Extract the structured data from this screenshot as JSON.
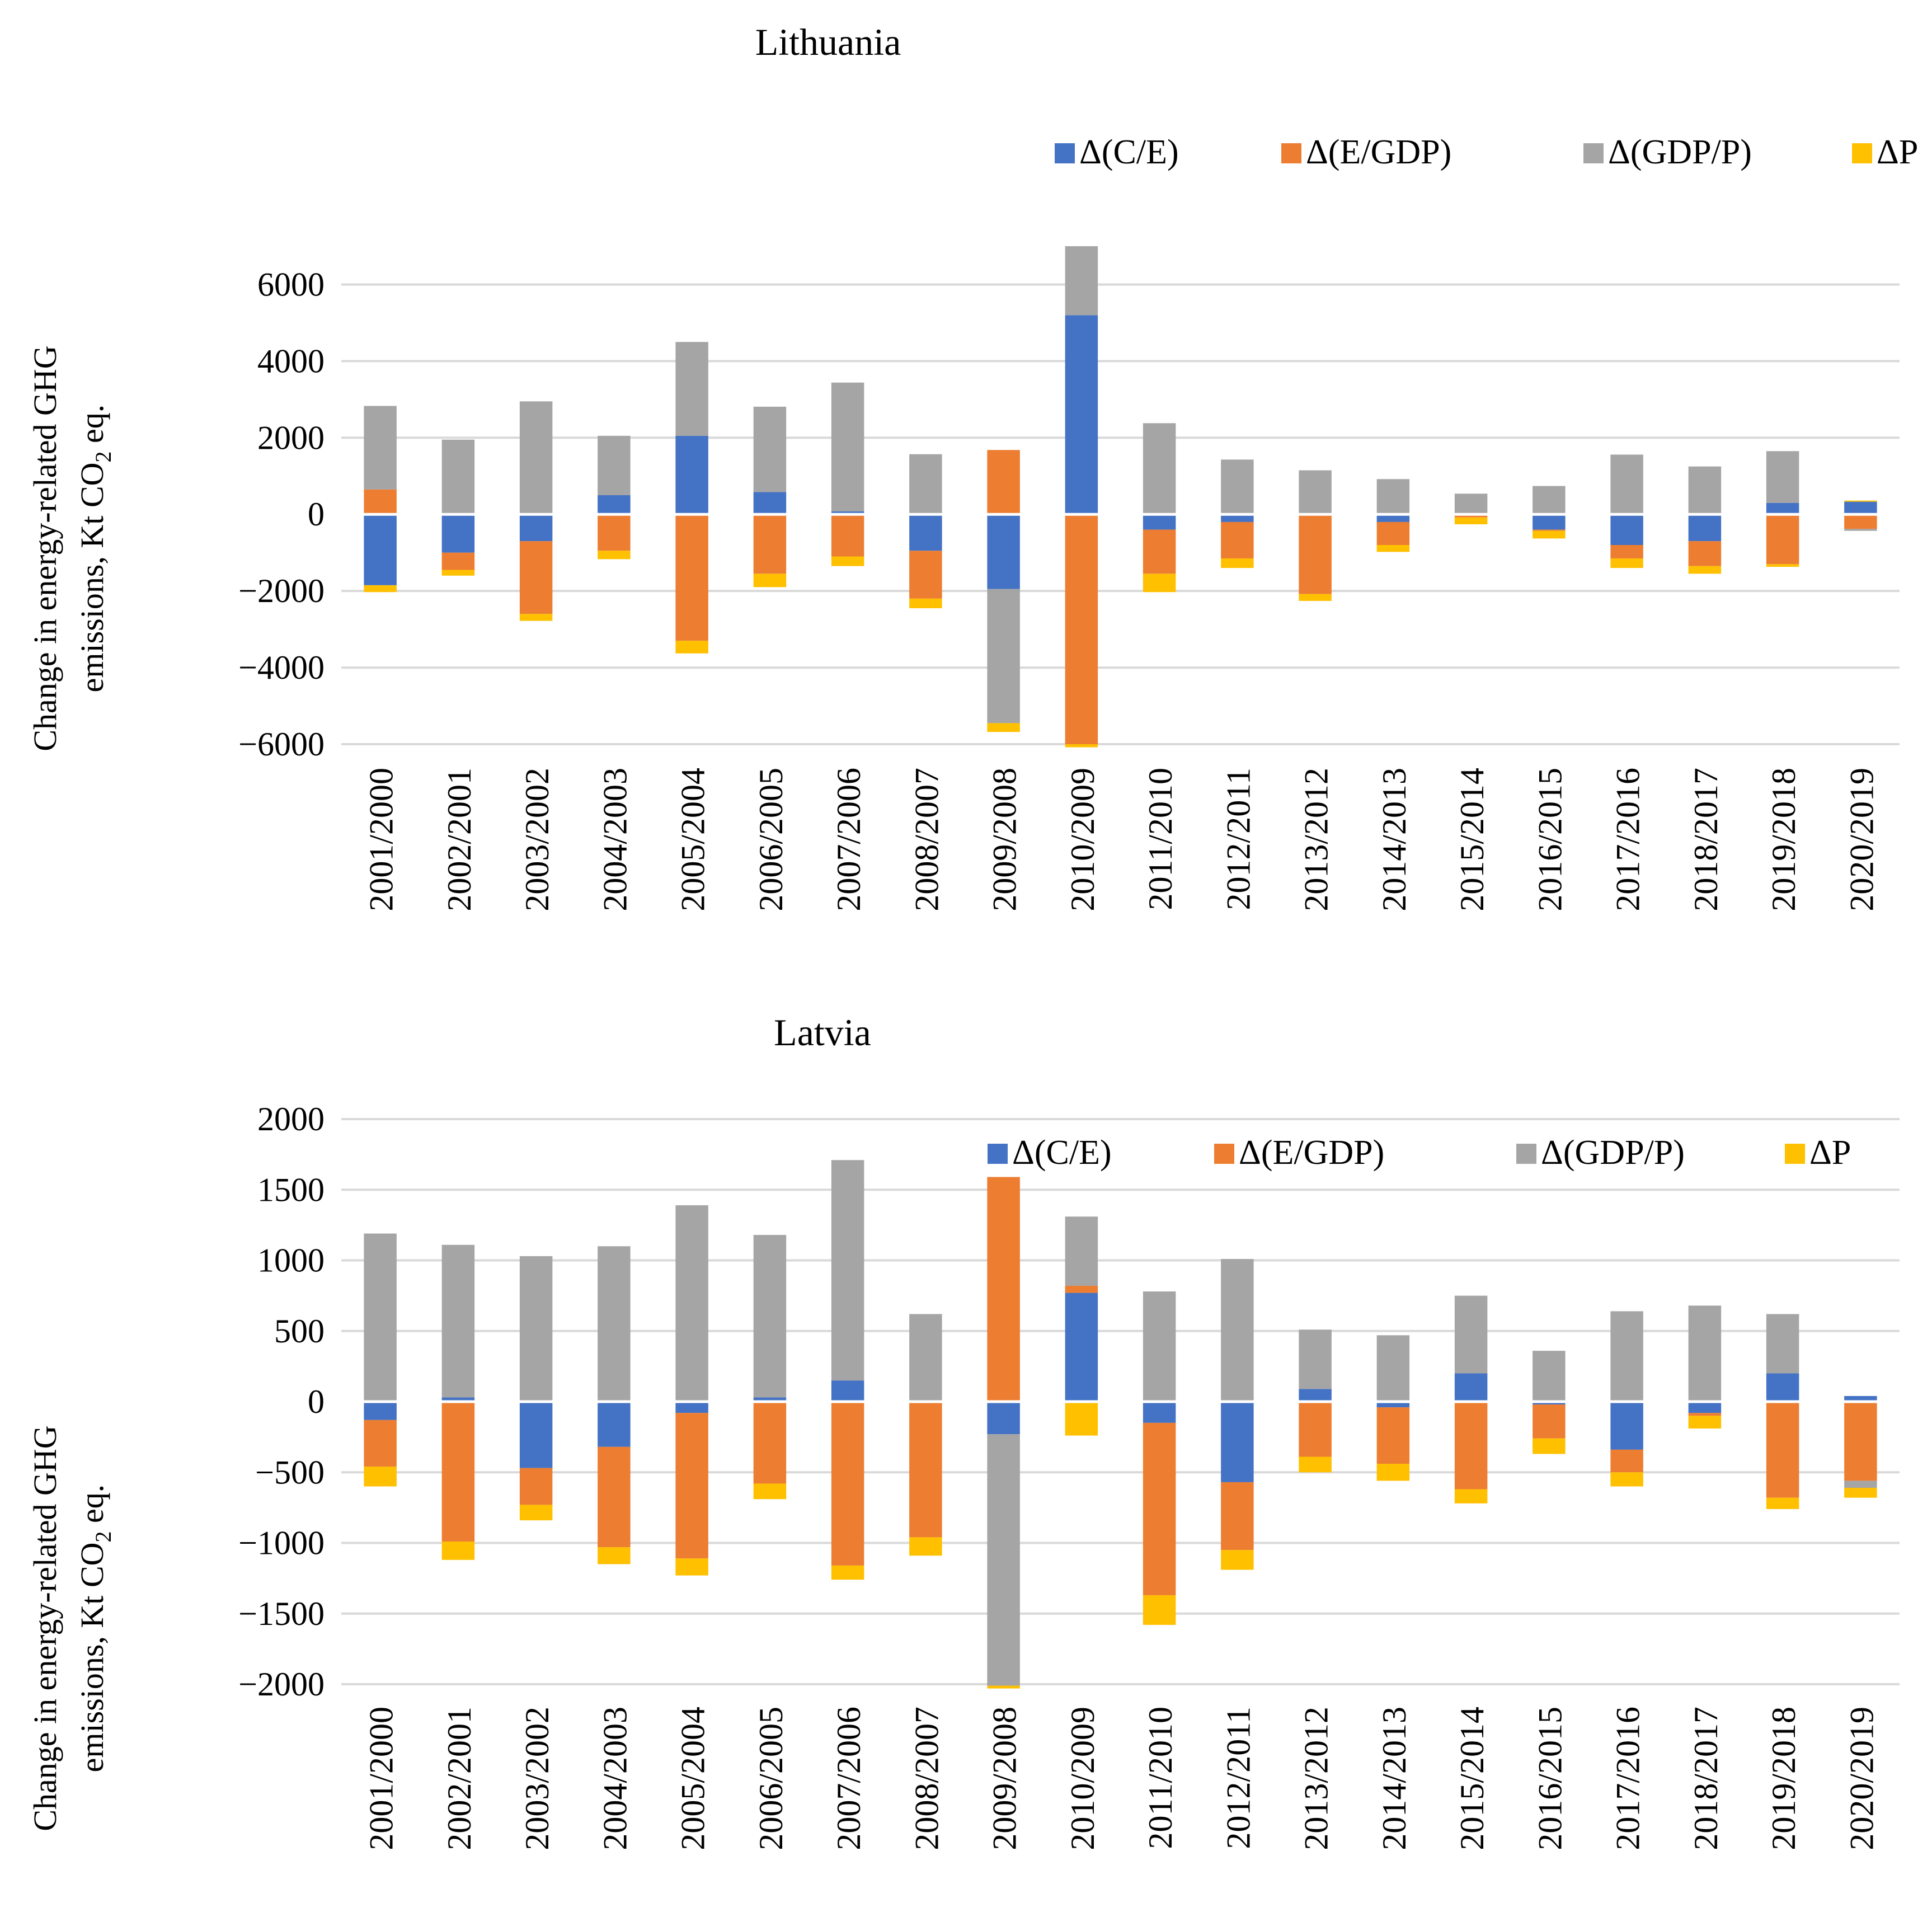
{
  "colors": {
    "ce": "#4472C4",
    "egdp": "#ED7D31",
    "gdpp": "#A5A5A5",
    "p": "#FFC000"
  },
  "chart_data": [
    {
      "type": "bar",
      "stacked": true,
      "title": "Lithuania",
      "ylabel_line1": "Change in energy-related GHG",
      "ylabel_line2_pre": "emissions, Kt CO",
      "ylabel_sub": "2",
      "ylabel_line2_post": " eq.",
      "ylim": [
        -6000,
        7000
      ],
      "yticks": [
        6000,
        4000,
        2000,
        0,
        -2000,
        -4000,
        -6000
      ],
      "ytick_labels": [
        "6000",
        "4000",
        "2000",
        "0",
        "−2000",
        "−4000",
        "−6000"
      ],
      "legend_position": "top-right",
      "legend": [
        "Δ(C/E)",
        "Δ(E/GDP)",
        "Δ(GDP/P)",
        "ΔP"
      ],
      "categories": [
        "2001/2000",
        "2002/2001",
        "2003/2002",
        "2004/2003",
        "2005/2004",
        "2006/2005",
        "2007/2006",
        "2008/2007",
        "2009/2008",
        "2010/2009",
        "2011/2010",
        "2012/2011",
        "2013/2012",
        "2014/2013",
        "2015/2014",
        "2016/2015",
        "2017/2016",
        "2018/2017",
        "2019/2018",
        "2020/2019"
      ],
      "series": [
        {
          "name": "Δ(C/E)",
          "color_key": "ce",
          "values": [
            -1850,
            -1000,
            -700,
            500,
            2050,
            580,
            80,
            -950,
            -1950,
            5200,
            -400,
            -200,
            -30,
            -200,
            -30,
            -400,
            -800,
            -700,
            300,
            330
          ]
        },
        {
          "name": "Δ(E/GDP)",
          "color_key": "egdp",
          "values": [
            650,
            -450,
            -1900,
            -950,
            -3300,
            -1550,
            -1100,
            -1250,
            1680,
            -6000,
            -1150,
            -950,
            -2050,
            -600,
            -50,
            -30,
            -350,
            -650,
            -1300,
            -380
          ]
        },
        {
          "name": "Δ(GDP/P)",
          "color_key": "gdpp",
          "values": [
            2180,
            1950,
            2950,
            1550,
            2450,
            2230,
            3360,
            1570,
            -3500,
            1800,
            2380,
            1430,
            1150,
            920,
            540,
            740,
            1560,
            1250,
            1350,
            -50
          ]
        },
        {
          "name": "ΔP",
          "color_key": "p",
          "values": [
            -180,
            -150,
            -180,
            -220,
            -330,
            -350,
            -250,
            -250,
            -230,
            -80,
            -480,
            -250,
            -180,
            -180,
            -180,
            -200,
            -250,
            -200,
            -70,
            30
          ]
        }
      ]
    },
    {
      "type": "bar",
      "stacked": true,
      "title": "Latvia",
      "ylabel_line1": "Change in energy-related GHG",
      "ylabel_line2_pre": "emissions, Kt CO",
      "ylabel_sub": "2",
      "ylabel_line2_post": " eq.",
      "ylim": [
        -2000,
        2000
      ],
      "yticks": [
        2000,
        1500,
        1000,
        500,
        0,
        -500,
        -1000,
        -1500,
        -2000
      ],
      "ytick_labels": [
        "2000",
        "1500",
        "1000",
        "500",
        "0",
        "−500",
        "−1000",
        "−1500",
        "−2000"
      ],
      "legend_position": "top-right",
      "legend": [
        "Δ(C/E)",
        "Δ(E/GDP)",
        "Δ(GDP/P)",
        "ΔP"
      ],
      "categories": [
        "2001/2000",
        "2002/2001",
        "2003/2002",
        "2004/2003",
        "2005/2004",
        "2006/2005",
        "2007/2006",
        "2008/2007",
        "2009/2008",
        "2010/2009",
        "2011/2010",
        "2012/2011",
        "2013/2012",
        "2014/2013",
        "2015/2014",
        "2016/2015",
        "2017/2016",
        "2018/2017",
        "2019/2018",
        "2020/2019"
      ],
      "series": [
        {
          "name": "Δ(C/E)",
          "color_key": "ce",
          "values": [
            -130,
            30,
            -470,
            -320,
            -80,
            30,
            150,
            -10,
            -230,
            770,
            -150,
            -570,
            90,
            -40,
            200,
            -20,
            -340,
            -80,
            200,
            40
          ]
        },
        {
          "name": "Δ(E/GDP)",
          "color_key": "egdp",
          "values": [
            -330,
            -990,
            -260,
            -710,
            -1030,
            -580,
            -1160,
            -950,
            1590,
            50,
            -1220,
            -480,
            -390,
            -400,
            -620,
            -240,
            -160,
            -20,
            -680,
            -560
          ]
        },
        {
          "name": "Δ(GDP/P)",
          "color_key": "gdpp",
          "values": [
            1190,
            1080,
            1030,
            1100,
            1390,
            1150,
            1560,
            620,
            -1780,
            490,
            780,
            1010,
            420,
            470,
            550,
            360,
            640,
            680,
            420,
            -50
          ]
        },
        {
          "name": "ΔP",
          "color_key": "p",
          "values": [
            -140,
            -130,
            -110,
            -120,
            -120,
            -110,
            -100,
            -130,
            -20,
            -240,
            -210,
            -140,
            -110,
            -120,
            -100,
            -110,
            -100,
            -90,
            -80,
            -70
          ]
        }
      ]
    }
  ]
}
